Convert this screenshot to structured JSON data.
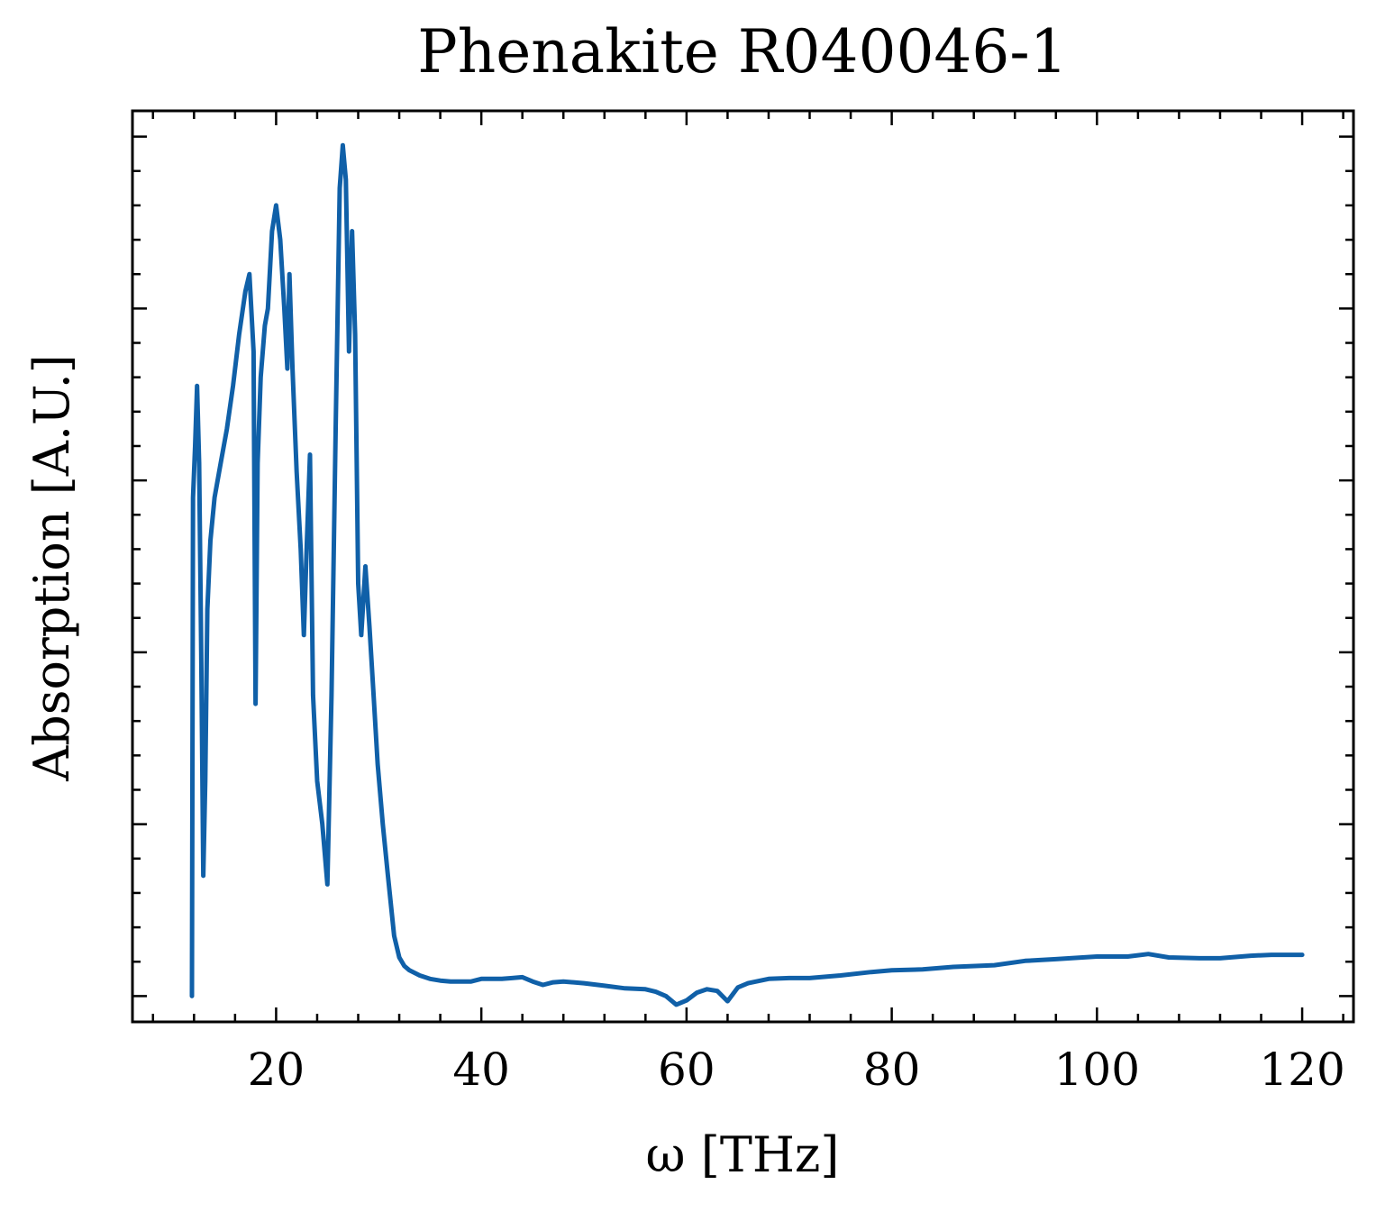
{
  "chart_data": {
    "type": "line",
    "title": "Phenakite R040046-1",
    "xlabel": "ω [THz]",
    "ylabel": "Absorption [A.U.]",
    "xlim": [
      6,
      125
    ],
    "ylim": [
      -0.03,
      1.03
    ],
    "x_ticks": [
      20,
      40,
      60,
      80,
      100,
      120
    ],
    "x_minor_step": 4,
    "y_ticks": [
      0,
      0.2,
      0.4,
      0.6,
      0.8,
      1.0
    ],
    "y_minor_step": 0.04,
    "y_tick_labels_shown": false,
    "grid": false,
    "legend": null,
    "color": "#1060a8",
    "series": [
      {
        "x": [
          11.8,
          11.9,
          12.1,
          12.3,
          12.5,
          12.7,
          12.9,
          13.1,
          13.3,
          13.6,
          14.0,
          14.6,
          15.2,
          15.8,
          16.4,
          17.0,
          17.4,
          17.8,
          18.0,
          18.2,
          18.5,
          18.9,
          19.2,
          19.6,
          20.0,
          20.4,
          20.8,
          21.1,
          21.3,
          21.6,
          22.0,
          22.4,
          22.7,
          23.0,
          23.3,
          23.6,
          24.0,
          24.5,
          25.0,
          25.4,
          25.8,
          26.2,
          26.5,
          26.8,
          27.1,
          27.4,
          27.7,
          28.0,
          28.3,
          28.7,
          29.1,
          29.5,
          29.9,
          30.4,
          30.9,
          31.5,
          32.0,
          32.5,
          33.0,
          33.5,
          34.0,
          34.5,
          35.0,
          36.0,
          37.0,
          38.0,
          39.0,
          40.0,
          41.0,
          42.0,
          43.0,
          44.0,
          45.0,
          46.0,
          47.0,
          48.0,
          50.0,
          52.0,
          54.0,
          56.0,
          57.0,
          58.0,
          59.0,
          60.0,
          61.0,
          62.0,
          63.0,
          64.0,
          64.5,
          65.0,
          66.0,
          68.0,
          70.0,
          72.0,
          75.0,
          78.0,
          80.0,
          83.0,
          86.0,
          90.0,
          93.0,
          96.0,
          100.0,
          103.0,
          105.0,
          107.0,
          110.0,
          112.0,
          115.0,
          117.0,
          120.0
        ],
        "y": [
          0.0,
          0.58,
          0.64,
          0.71,
          0.62,
          0.4,
          0.14,
          0.25,
          0.45,
          0.53,
          0.58,
          0.62,
          0.66,
          0.71,
          0.77,
          0.82,
          0.84,
          0.75,
          0.34,
          0.62,
          0.72,
          0.78,
          0.8,
          0.89,
          0.92,
          0.88,
          0.8,
          0.73,
          0.84,
          0.73,
          0.61,
          0.52,
          0.42,
          0.53,
          0.63,
          0.35,
          0.25,
          0.2,
          0.13,
          0.35,
          0.66,
          0.94,
          0.99,
          0.95,
          0.75,
          0.89,
          0.77,
          0.48,
          0.42,
          0.5,
          0.43,
          0.35,
          0.27,
          0.2,
          0.14,
          0.07,
          0.045,
          0.035,
          0.03,
          0.027,
          0.024,
          0.022,
          0.02,
          0.018,
          0.017,
          0.017,
          0.017,
          0.02,
          0.02,
          0.02,
          0.021,
          0.022,
          0.017,
          0.013,
          0.016,
          0.017,
          0.015,
          0.012,
          0.009,
          0.008,
          0.005,
          0.0,
          -0.01,
          -0.005,
          0.004,
          0.008,
          0.006,
          -0.006,
          0.002,
          0.01,
          0.015,
          0.02,
          0.021,
          0.021,
          0.024,
          0.028,
          0.03,
          0.031,
          0.034,
          0.036,
          0.041,
          0.043,
          0.046,
          0.046,
          0.049,
          0.045,
          0.044,
          0.044,
          0.047,
          0.048,
          0.048
        ]
      }
    ]
  }
}
